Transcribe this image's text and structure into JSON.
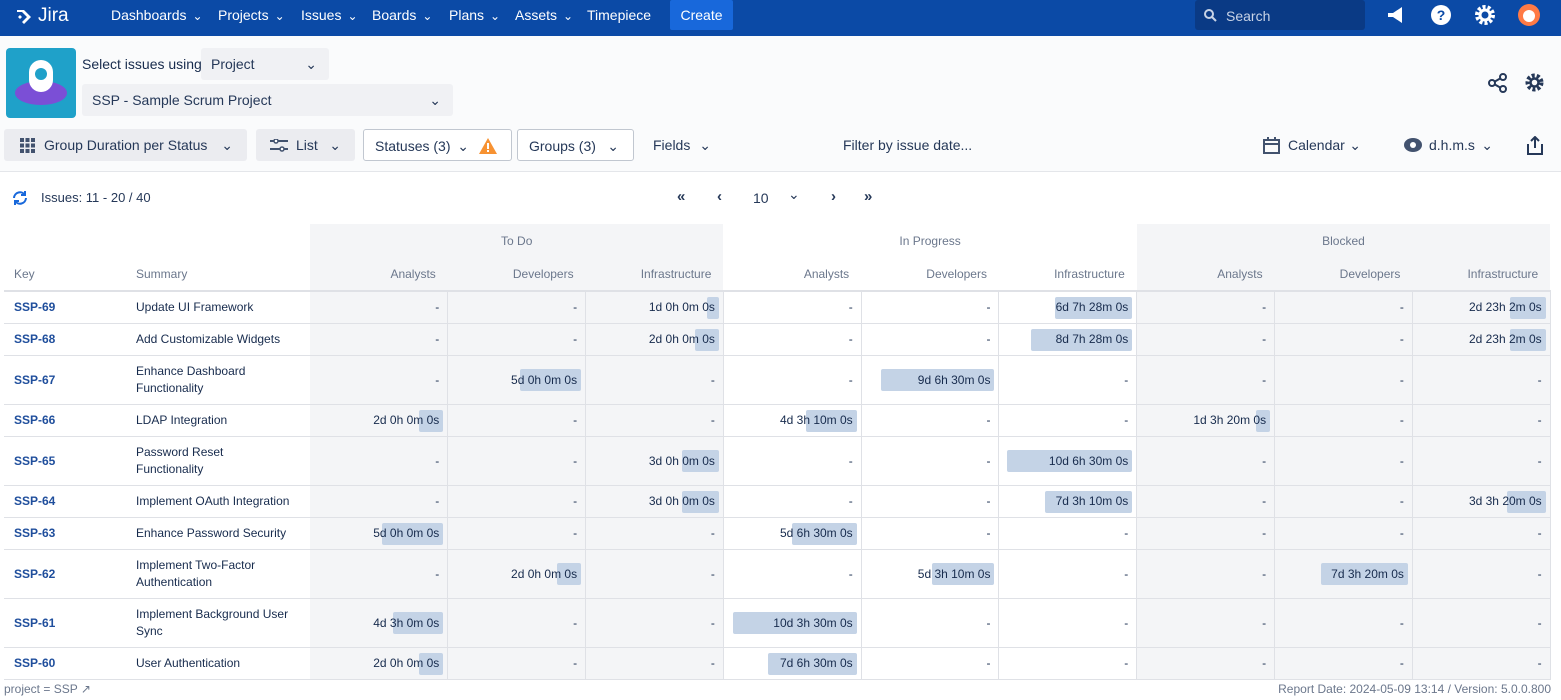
{
  "nav": {
    "logo": "Jira",
    "items": [
      "Dashboards",
      "Projects",
      "Issues",
      "Boards",
      "Plans",
      "Assets",
      "Timepiece"
    ],
    "create": "Create",
    "search": "Search"
  },
  "header": {
    "select_label": "Select issues using",
    "select_value": "Project",
    "project": "SSP - Sample Scrum Project"
  },
  "toolbar": {
    "report": "Group Duration per Status",
    "view": "List",
    "statuses": "Statuses (3)",
    "groups": "Groups (3)",
    "fields": "Fields",
    "filter": "Filter by issue date...",
    "calendar": "Calendar",
    "format": "d.h.m.s"
  },
  "pagination": {
    "issues": "Issues: 11 - 20 / 40",
    "page_size": "10"
  },
  "table": {
    "key_header": "Key",
    "summary_header": "Summary",
    "groups": [
      "To Do",
      "In Progress",
      "Blocked"
    ],
    "subcolumns": [
      "Analysts",
      "Developers",
      "Infrastructure"
    ],
    "rows": [
      {
        "key": "SSP-69",
        "summary": "Update UI Framework",
        "cells": [
          "-",
          "-",
          "1d 0h 0m 0s",
          "-",
          "-",
          "6d 7h 28m 0s",
          "-",
          "-",
          "2d 23h 2m 0s"
        ]
      },
      {
        "key": "SSP-68",
        "summary": "Add Customizable Widgets",
        "cells": [
          "-",
          "-",
          "2d 0h 0m 0s",
          "-",
          "-",
          "8d 7h 28m 0s",
          "-",
          "-",
          "2d 23h 2m 0s"
        ]
      },
      {
        "key": "SSP-67",
        "summary": "Enhance Dashboard Functionality",
        "cells": [
          "-",
          "5d 0h 0m 0s",
          "-",
          "-",
          "9d 6h 30m 0s",
          "-",
          "-",
          "-",
          "-"
        ]
      },
      {
        "key": "SSP-66",
        "summary": "LDAP Integration",
        "cells": [
          "2d 0h 0m 0s",
          "-",
          "-",
          "4d 3h 10m 0s",
          "-",
          "-",
          "1d 3h 20m 0s",
          "-",
          "-"
        ]
      },
      {
        "key": "SSP-65",
        "summary": "Password Reset Functionality",
        "cells": [
          "-",
          "-",
          "3d 0h 0m 0s",
          "-",
          "-",
          "10d 6h 30m 0s",
          "-",
          "-",
          "-"
        ]
      },
      {
        "key": "SSP-64",
        "summary": "Implement OAuth Integration",
        "cells": [
          "-",
          "-",
          "3d 0h 0m 0s",
          "-",
          "-",
          "7d 3h 10m 0s",
          "-",
          "-",
          "3d 3h 20m 0s"
        ]
      },
      {
        "key": "SSP-63",
        "summary": "Enhance Password Security",
        "cells": [
          "5d 0h 0m 0s",
          "-",
          "-",
          "5d 6h 30m 0s",
          "-",
          "-",
          "-",
          "-",
          "-"
        ]
      },
      {
        "key": "SSP-62",
        "summary": "Implement Two-Factor Authentication",
        "cells": [
          "-",
          "2d 0h 0m 0s",
          "-",
          "-",
          "5d 3h 10m 0s",
          "-",
          "-",
          "7d 3h 20m 0s",
          "-"
        ]
      },
      {
        "key": "SSP-61",
        "summary": "Implement Background User Sync",
        "cells": [
          "4d 3h 0m 0s",
          "-",
          "-",
          "10d 3h 30m 0s",
          "-",
          "-",
          "-",
          "-",
          "-"
        ]
      },
      {
        "key": "SSP-60",
        "summary": "User Authentication",
        "cells": [
          "2d 0h 0m 0s",
          "-",
          "-",
          "7d 6h 30m 0s",
          "-",
          "-",
          "-",
          "-",
          "-"
        ]
      }
    ]
  },
  "footer": {
    "query": "project = SSP",
    "report": "Report Date: 2024-05-09 13:14 / Version: 5.0.0.800"
  }
}
